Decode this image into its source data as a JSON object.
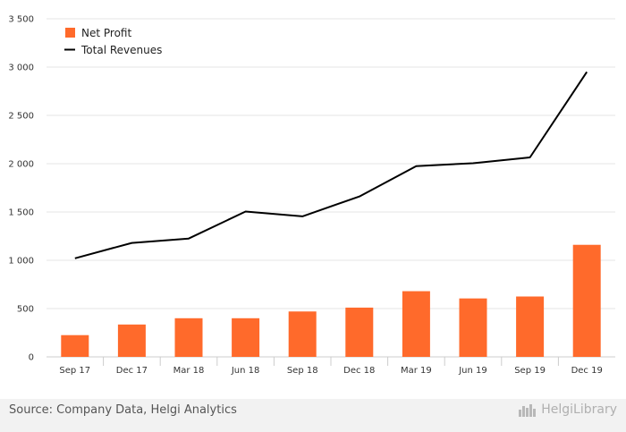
{
  "chart_data": {
    "type": "bar",
    "categories": [
      "Sep 17",
      "Dec 17",
      "Mar 18",
      "Jun 18",
      "Sep 18",
      "Dec 18",
      "Mar 19",
      "Jun 19",
      "Sep 19",
      "Dec 19"
    ],
    "series": [
      {
        "name": "Net Profit",
        "type": "bar",
        "color": "#ff6a2b",
        "values": [
          225,
          335,
          400,
          400,
          470,
          510,
          680,
          605,
          625,
          1160
        ]
      },
      {
        "name": "Total Revenues",
        "type": "line",
        "color": "#000000",
        "values": [
          1020,
          1180,
          1225,
          1505,
          1455,
          1660,
          1975,
          2005,
          2065,
          2950
        ]
      }
    ],
    "ylim": [
      0,
      3500
    ],
    "yticks": [
      0,
      500,
      1000,
      1500,
      2000,
      2500,
      3000,
      3500
    ],
    "ytick_labels": [
      "0",
      "500",
      "1 000",
      "1 500",
      "2 000",
      "2 500",
      "3 000",
      "3 500"
    ],
    "grid": true,
    "legend_position": "top-left"
  },
  "footer": {
    "source": "Source: Company Data, Helgi Analytics",
    "brand": "HelgiLibrary"
  }
}
